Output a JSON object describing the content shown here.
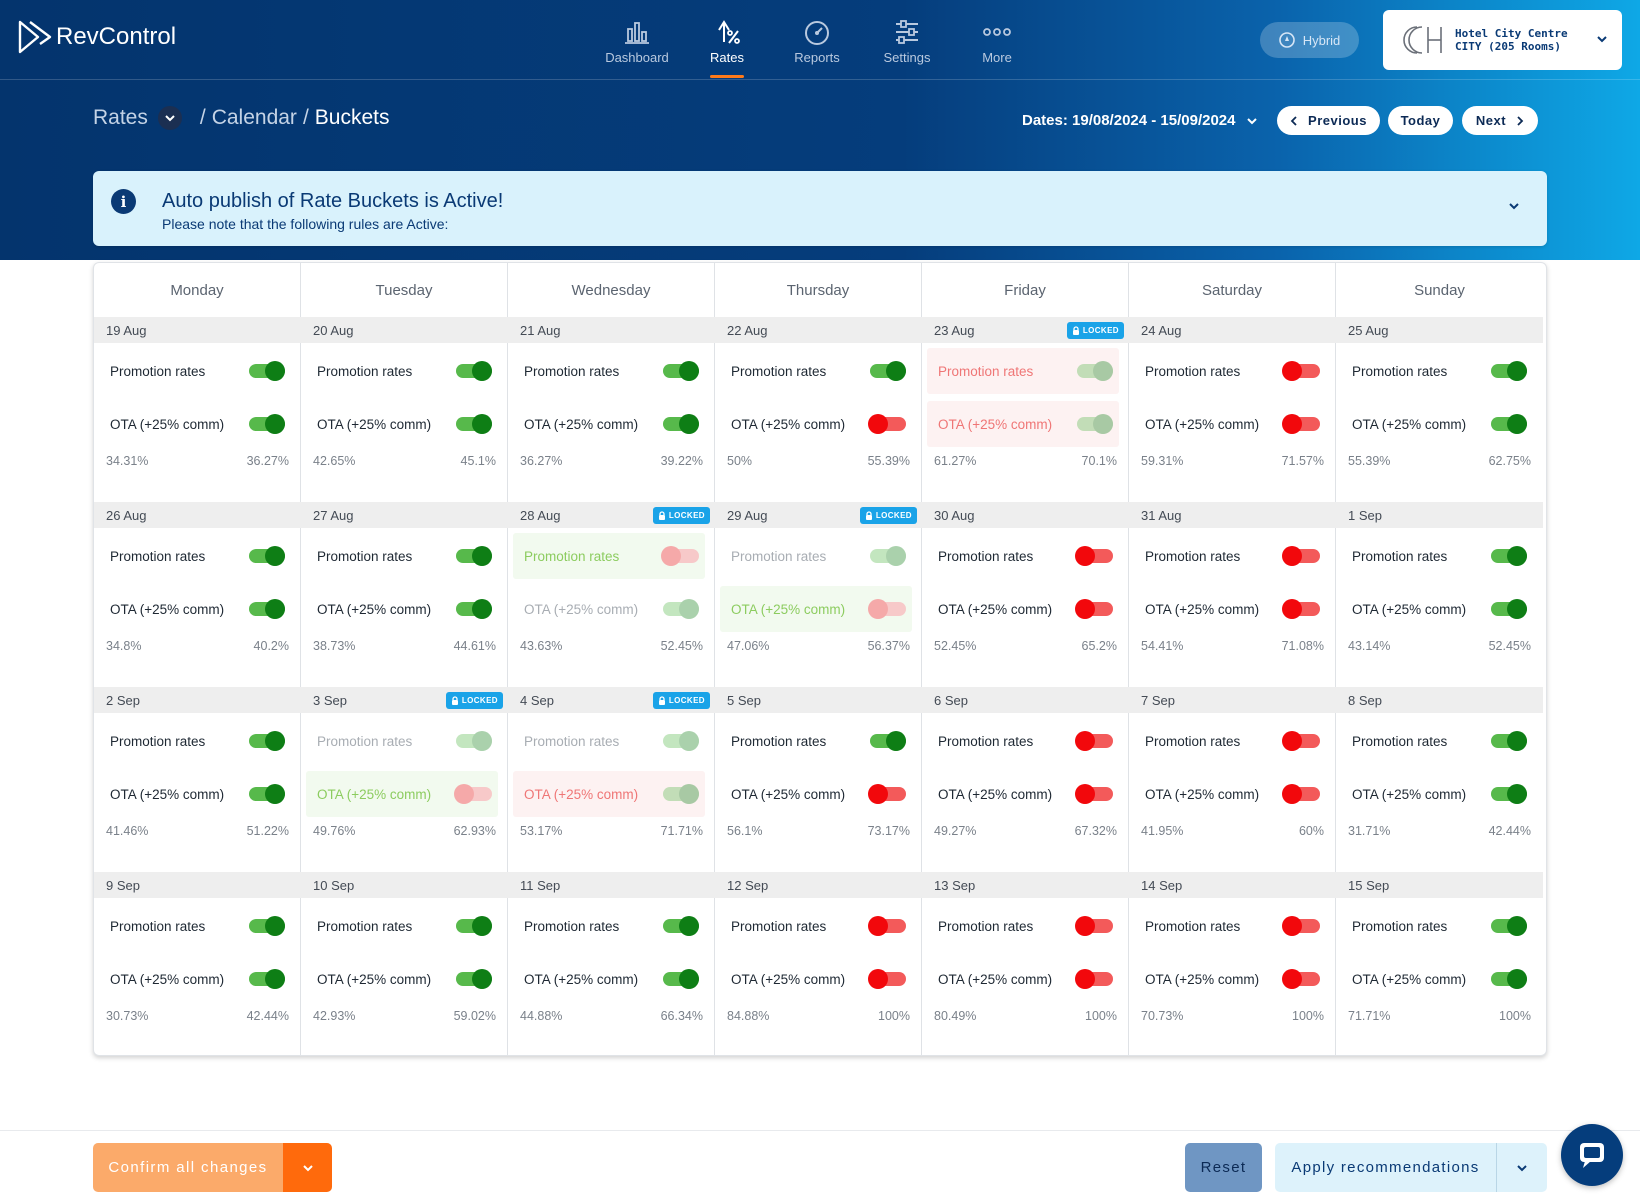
{
  "app": {
    "logo_text": "RevControl"
  },
  "nav": [
    {
      "label": "Dashboard",
      "icon": "bar-chart-icon"
    },
    {
      "label": "Rates",
      "icon": "rates-percent-icon",
      "active": true
    },
    {
      "label": "Reports",
      "icon": "speedometer-icon"
    },
    {
      "label": "Settings",
      "icon": "sliders-icon"
    },
    {
      "label": "More",
      "icon": "more-dots-icon"
    }
  ],
  "mode": {
    "label": "Hybrid"
  },
  "hotel": {
    "line1": "Hotel City Centre",
    "line2": "CITY (205 Rooms)"
  },
  "breadcrumb": {
    "root": "Rates",
    "sep1": "/",
    "item2": "Calendar",
    "sep2": "/",
    "current": "Buckets"
  },
  "dates": {
    "label": "Dates: 19/08/2024 - 15/09/2024"
  },
  "buttons": {
    "previous": "Previous",
    "today": "Today",
    "next": "Next",
    "confirm": "Confirm all changes",
    "reset": "Reset",
    "apply": "Apply recommendations"
  },
  "banner": {
    "title": "Auto publish of Rate Buckets is Active!",
    "subtitle": "Please note that the following rules are Active:"
  },
  "calendar": {
    "days": [
      "Monday",
      "Tuesday",
      "Wednesday",
      "Thursday",
      "Friday",
      "Saturday",
      "Sunday"
    ],
    "locked_label": "LOCKED",
    "row1_label": "Promotion rates",
    "row2_label": "OTA (+25% comm)",
    "cells": [
      {
        "date": "19 Aug",
        "locked": false,
        "r1": "on",
        "r2": "on",
        "p1": "34.31%",
        "p2": "36.27%"
      },
      {
        "date": "20 Aug",
        "locked": false,
        "r1": "on",
        "r2": "on",
        "p1": "42.65%",
        "p2": "45.1%"
      },
      {
        "date": "21 Aug",
        "locked": false,
        "r1": "on",
        "r2": "on",
        "p1": "36.27%",
        "p2": "39.22%"
      },
      {
        "date": "22 Aug",
        "locked": false,
        "r1": "on",
        "r2": "off",
        "p1": "50%",
        "p2": "55.39%"
      },
      {
        "date": "23 Aug",
        "locked": true,
        "r1": "pend-red",
        "r2": "pend-red",
        "p1": "61.27%",
        "p2": "70.1%"
      },
      {
        "date": "24 Aug",
        "locked": false,
        "r1": "off",
        "r2": "off",
        "p1": "59.31%",
        "p2": "71.57%"
      },
      {
        "date": "25 Aug",
        "locked": false,
        "r1": "on",
        "r2": "on",
        "p1": "55.39%",
        "p2": "62.75%"
      },
      {
        "date": "26 Aug",
        "locked": false,
        "r1": "on",
        "r2": "on",
        "p1": "34.8%",
        "p2": "40.2%"
      },
      {
        "date": "27 Aug",
        "locked": false,
        "r1": "on",
        "r2": "on",
        "p1": "38.73%",
        "p2": "44.61%"
      },
      {
        "date": "28 Aug",
        "locked": true,
        "r1": "pend-green",
        "r2": "dis-on",
        "p1": "43.63%",
        "p2": "52.45%"
      },
      {
        "date": "29 Aug",
        "locked": true,
        "r1": "dis-on",
        "r2": "pend-green",
        "p1": "47.06%",
        "p2": "56.37%"
      },
      {
        "date": "30 Aug",
        "locked": false,
        "r1": "off",
        "r2": "off",
        "p1": "52.45%",
        "p2": "65.2%"
      },
      {
        "date": "31 Aug",
        "locked": false,
        "r1": "off",
        "r2": "off",
        "p1": "54.41%",
        "p2": "71.08%"
      },
      {
        "date": "1 Sep",
        "locked": false,
        "r1": "on",
        "r2": "on",
        "p1": "43.14%",
        "p2": "52.45%"
      },
      {
        "date": "2 Sep",
        "locked": false,
        "r1": "on",
        "r2": "on",
        "p1": "41.46%",
        "p2": "51.22%"
      },
      {
        "date": "3 Sep",
        "locked": true,
        "r1": "dis-on",
        "r2": "pend-green",
        "p1": "49.76%",
        "p2": "62.93%"
      },
      {
        "date": "4 Sep",
        "locked": true,
        "r1": "dis-on",
        "r2": "pend-red",
        "p1": "53.17%",
        "p2": "71.71%"
      },
      {
        "date": "5 Sep",
        "locked": false,
        "r1": "on",
        "r2": "off",
        "p1": "56.1%",
        "p2": "73.17%"
      },
      {
        "date": "6 Sep",
        "locked": false,
        "r1": "off",
        "r2": "off",
        "p1": "49.27%",
        "p2": "67.32%"
      },
      {
        "date": "7 Sep",
        "locked": false,
        "r1": "off",
        "r2": "off",
        "p1": "41.95%",
        "p2": "60%"
      },
      {
        "date": "8 Sep",
        "locked": false,
        "r1": "on",
        "r2": "on",
        "p1": "31.71%",
        "p2": "42.44%"
      },
      {
        "date": "9 Sep",
        "locked": false,
        "r1": "on",
        "r2": "on",
        "p1": "30.73%",
        "p2": "42.44%"
      },
      {
        "date": "10 Sep",
        "locked": false,
        "r1": "on",
        "r2": "on",
        "p1": "42.93%",
        "p2": "59.02%"
      },
      {
        "date": "11 Sep",
        "locked": false,
        "r1": "on",
        "r2": "on",
        "p1": "44.88%",
        "p2": "66.34%"
      },
      {
        "date": "12 Sep",
        "locked": false,
        "r1": "off",
        "r2": "off",
        "p1": "84.88%",
        "p2": "100%"
      },
      {
        "date": "13 Sep",
        "locked": false,
        "r1": "off",
        "r2": "off",
        "p1": "80.49%",
        "p2": "100%"
      },
      {
        "date": "14 Sep",
        "locked": false,
        "r1": "off",
        "r2": "off",
        "p1": "70.73%",
        "p2": "100%"
      },
      {
        "date": "15 Sep",
        "locked": false,
        "r1": "on",
        "r2": "on",
        "p1": "71.71%",
        "p2": "100%"
      }
    ]
  },
  "colors": {
    "navy": "#053d7c",
    "orange": "#ff6a0c",
    "toggle_on": "#0e7e15",
    "toggle_off": "#f2080c",
    "locked_badge": "#1aa3e8"
  }
}
